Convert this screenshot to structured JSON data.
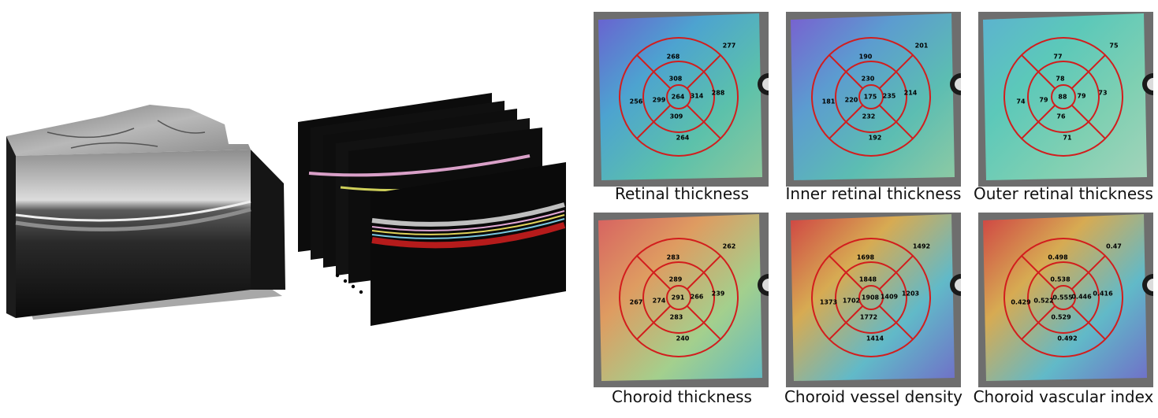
{
  "maps": [
    {
      "caption": "Retinal thickness",
      "values": {
        "c": "264",
        "in_n": "308",
        "in_r": "314",
        "in_s": "309",
        "in_l": "299",
        "out_n": "268",
        "out_r": "288",
        "out_s": "264",
        "out_l": "256",
        "corner": "277"
      }
    },
    {
      "caption": "Inner retinal thickness",
      "values": {
        "c": "175",
        "in_n": "230",
        "in_r": "235",
        "in_s": "232",
        "in_l": "220",
        "out_n": "190",
        "out_r": "214",
        "out_s": "192",
        "out_l": "181",
        "corner": "201"
      }
    },
    {
      "caption": "Outer retinal thickness",
      "values": {
        "c": "88",
        "in_n": "78",
        "in_r": "79",
        "in_s": "76",
        "in_l": "79",
        "out_n": "77",
        "out_r": "73",
        "out_s": "71",
        "out_l": "74",
        "corner": "75"
      }
    },
    {
      "caption": "Choroid thickness",
      "values": {
        "c": "291",
        "in_n": "289",
        "in_r": "266",
        "in_s": "283",
        "in_l": "274",
        "out_n": "283",
        "out_r": "239",
        "out_s": "240",
        "out_l": "267",
        "corner": "262"
      }
    },
    {
      "caption": "Choroid vessel density",
      "values": {
        "c": "1908",
        "in_n": "1848",
        "in_r": "1409",
        "in_s": "1772",
        "in_l": "1702",
        "out_n": "1698",
        "out_r": "1203",
        "out_s": "1414",
        "out_l": "1373",
        "corner": "1492"
      }
    },
    {
      "caption": "Choroid vascular index",
      "values": {
        "c": "0.555",
        "in_n": "0.538",
        "in_r": "0.446",
        "in_s": "0.529",
        "in_l": "0.522",
        "out_n": "0.498",
        "out_r": "0.416",
        "out_s": "0.492",
        "out_l": "0.429",
        "corner": "0.47"
      }
    }
  ]
}
